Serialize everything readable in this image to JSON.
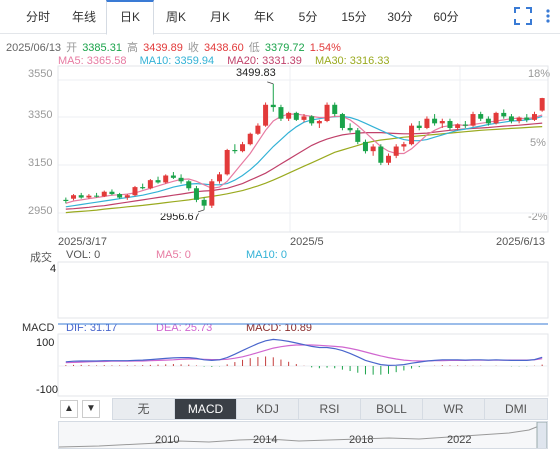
{
  "tabs": [
    {
      "label": "分时"
    },
    {
      "label": "年线"
    },
    {
      "label": "日K"
    },
    {
      "label": "周K"
    },
    {
      "label": "月K"
    },
    {
      "label": "年K"
    },
    {
      "label": "5分"
    },
    {
      "label": "15分"
    },
    {
      "label": "30分"
    },
    {
      "label": "60分"
    }
  ],
  "quote": {
    "date": "2025/06/13",
    "open_label": "开",
    "open": "3385.31",
    "high_label": "高",
    "high": "3439.89",
    "close_label": "收",
    "close": "3438.60",
    "low_label": "低",
    "low": "3379.72",
    "change_pct": "1.54%"
  },
  "ma": {
    "ma5": "MA5: 3365.58",
    "ma10": "MA10: 3359.94",
    "ma20": "MA20: 3331.39",
    "ma30": "MA30: 3316.33"
  },
  "price_axis": [
    "3550",
    "3350",
    "3150",
    "2950"
  ],
  "pct_axis": [
    "18%",
    "5%",
    "-2%"
  ],
  "date_axis": [
    "2025/3/17",
    "2025/5",
    "2025/6/13"
  ],
  "annotations": {
    "max": "3499.83",
    "min": "2956.67"
  },
  "volume": {
    "title": "成交",
    "vol": "VOL: 0",
    "ma5": "MA5: 0",
    "ma10": "MA10: 0",
    "axis_top": "4"
  },
  "macd": {
    "title": "MACD",
    "dif": "DIF: 31.17",
    "dea": "DEA: 25.73",
    "macd": "MACD: 10.89",
    "axis_top": "100",
    "axis_bottom": "-100"
  },
  "indicators": [
    "无",
    "MACD",
    "KDJ",
    "RSI",
    "BOLL",
    "WR",
    "DMI"
  ],
  "active_indicator": "MACD",
  "nav_years": [
    "2010",
    "2014",
    "2018",
    "2022"
  ],
  "colors": {
    "up": "#e23a3a",
    "down": "#1aa34a",
    "ma5": "#e77ba2",
    "ma10": "#33b2d6",
    "ma20": "#c0416a",
    "ma30": "#9aaa1f",
    "dif": "#4a66cc",
    "dea": "#d066d0",
    "macd_text": "#8b2e2e"
  },
  "chart_data": {
    "type": "candlestick",
    "ylim": [
      2870,
      3560
    ],
    "candles_ohlc": [
      [
        3000,
        3010,
        2985,
        2995
      ],
      [
        3005,
        3025,
        2998,
        3020
      ],
      [
        3020,
        3030,
        3005,
        3010
      ],
      [
        3010,
        3025,
        3005,
        3018
      ],
      [
        3018,
        3030,
        3010,
        3015
      ],
      [
        3015,
        3040,
        3012,
        3035
      ],
      [
        3035,
        3045,
        3020,
        3025
      ],
      [
        3025,
        3030,
        3005,
        3010
      ],
      [
        3010,
        3025,
        3000,
        3020
      ],
      [
        3020,
        3060,
        3015,
        3055
      ],
      [
        3055,
        3070,
        3045,
        3050
      ],
      [
        3050,
        3090,
        3045,
        3085
      ],
      [
        3085,
        3100,
        3070,
        3075
      ],
      [
        3075,
        3110,
        3070,
        3105
      ],
      [
        3105,
        3120,
        3090,
        3095
      ],
      [
        3095,
        3110,
        3070,
        3080
      ],
      [
        3080,
        3085,
        3040,
        3050
      ],
      [
        3050,
        3060,
        2990,
        3000
      ],
      [
        3000,
        3010,
        2957,
        2975
      ],
      [
        2975,
        3090,
        2965,
        3080
      ],
      [
        3080,
        3120,
        3070,
        3110
      ],
      [
        3110,
        3220,
        3105,
        3215
      ],
      [
        3215,
        3240,
        3200,
        3210
      ],
      [
        3210,
        3250,
        3205,
        3240
      ],
      [
        3240,
        3290,
        3235,
        3285
      ],
      [
        3285,
        3330,
        3280,
        3320
      ],
      [
        3320,
        3420,
        3315,
        3410
      ],
      [
        3410,
        3500,
        3380,
        3400
      ],
      [
        3400,
        3410,
        3340,
        3350
      ],
      [
        3350,
        3380,
        3340,
        3375
      ],
      [
        3375,
        3380,
        3340,
        3345
      ],
      [
        3345,
        3370,
        3335,
        3360
      ],
      [
        3360,
        3365,
        3320,
        3330
      ],
      [
        3330,
        3345,
        3310,
        3340
      ],
      [
        3340,
        3420,
        3335,
        3410
      ],
      [
        3410,
        3420,
        3360,
        3370
      ],
      [
        3370,
        3375,
        3300,
        3310
      ],
      [
        3310,
        3330,
        3290,
        3300
      ],
      [
        3300,
        3310,
        3240,
        3250
      ],
      [
        3250,
        3260,
        3200,
        3210
      ],
      [
        3210,
        3240,
        3190,
        3230
      ],
      [
        3230,
        3240,
        3150,
        3160
      ],
      [
        3160,
        3200,
        3150,
        3190
      ],
      [
        3190,
        3240,
        3180,
        3230
      ],
      [
        3230,
        3250,
        3210,
        3240
      ],
      [
        3240,
        3330,
        3235,
        3320
      ],
      [
        3320,
        3340,
        3300,
        3310
      ],
      [
        3310,
        3360,
        3305,
        3350
      ],
      [
        3350,
        3370,
        3320,
        3330
      ],
      [
        3330,
        3350,
        3310,
        3340
      ],
      [
        3340,
        3350,
        3300,
        3310
      ],
      [
        3310,
        3330,
        3300,
        3325
      ],
      [
        3325,
        3340,
        3310,
        3320
      ],
      [
        3320,
        3380,
        3315,
        3370
      ],
      [
        3370,
        3380,
        3340,
        3350
      ],
      [
        3350,
        3360,
        3320,
        3330
      ],
      [
        3330,
        3380,
        3325,
        3375
      ],
      [
        3375,
        3390,
        3350,
        3360
      ],
      [
        3360,
        3370,
        3330,
        3340
      ],
      [
        3340,
        3360,
        3330,
        3355
      ],
      [
        3355,
        3370,
        3335,
        3345
      ],
      [
        3345,
        3380,
        3340,
        3370
      ],
      [
        3385,
        3440,
        3380,
        3439
      ]
    ],
    "ma5": [
      2985,
      2995,
      3000,
      3005,
      3010,
      3015,
      3020,
      3022,
      3025,
      3030,
      3040,
      3050,
      3060,
      3070,
      3080,
      3088,
      3090,
      3080,
      3065,
      3050,
      3055,
      3080,
      3120,
      3160,
      3200,
      3250,
      3300,
      3340,
      3360,
      3370,
      3370,
      3365,
      3360,
      3355,
      3355,
      3360,
      3360,
      3345,
      3320,
      3290,
      3260,
      3230,
      3210,
      3200,
      3200,
      3220,
      3250,
      3280,
      3300,
      3315,
      3320,
      3325,
      3320,
      3325,
      3330,
      3335,
      3340,
      3345,
      3350,
      3352,
      3350,
      3355,
      3366
    ],
    "ma10": [
      2970,
      2975,
      2980,
      2985,
      2990,
      2995,
      3000,
      3005,
      3010,
      3015,
      3020,
      3028,
      3035,
      3045,
      3055,
      3062,
      3068,
      3070,
      3068,
      3065,
      3065,
      3070,
      3085,
      3105,
      3130,
      3160,
      3195,
      3230,
      3260,
      3290,
      3315,
      3335,
      3345,
      3350,
      3355,
      3358,
      3360,
      3355,
      3345,
      3330,
      3315,
      3300,
      3285,
      3270,
      3260,
      3255,
      3255,
      3260,
      3270,
      3280,
      3290,
      3300,
      3305,
      3312,
      3318,
      3325,
      3330,
      3335,
      3340,
      3342,
      3345,
      3350,
      3360
    ],
    "ma20": [
      2960,
      2962,
      2965,
      2968,
      2972,
      2975,
      2980,
      2985,
      2990,
      2995,
      3000,
      3005,
      3010,
      3015,
      3020,
      3025,
      3030,
      3035,
      3038,
      3040,
      3045,
      3050,
      3060,
      3070,
      3085,
      3100,
      3115,
      3135,
      3155,
      3175,
      3195,
      3215,
      3235,
      3250,
      3262,
      3272,
      3280,
      3285,
      3288,
      3290,
      3290,
      3290,
      3288,
      3286,
      3285,
      3285,
      3286,
      3288,
      3292,
      3296,
      3300,
      3303,
      3306,
      3308,
      3310,
      3312,
      3315,
      3318,
      3320,
      3322,
      3325,
      3328,
      3331
    ],
    "ma30": [
      2945,
      2948,
      2950,
      2953,
      2956,
      2960,
      2963,
      2966,
      2970,
      2973,
      2976,
      2980,
      2984,
      2988,
      2992,
      2996,
      3000,
      3005,
      3010,
      3015,
      3020,
      3026,
      3033,
      3040,
      3050,
      3060,
      3072,
      3085,
      3100,
      3115,
      3130,
      3145,
      3160,
      3175,
      3190,
      3205,
      3215,
      3225,
      3235,
      3245,
      3252,
      3258,
      3262,
      3266,
      3270,
      3273,
      3276,
      3279,
      3282,
      3285,
      3288,
      3291,
      3294,
      3297,
      3300,
      3302,
      3304,
      3306,
      3308,
      3310,
      3312,
      3314,
      3316
    ],
    "macd_dif": [
      15,
      17,
      18,
      18,
      18,
      19,
      19,
      19,
      19,
      20,
      21,
      23,
      25,
      27,
      29,
      30,
      30,
      27,
      22,
      20,
      22,
      30,
      42,
      55,
      68,
      80,
      90,
      95,
      92,
      88,
      82,
      76,
      70,
      66,
      66,
      62,
      55,
      45,
      33,
      20,
      12,
      5,
      2,
      3,
      5,
      10,
      14,
      18,
      20,
      22,
      22,
      22,
      21,
      22,
      22,
      21,
      22,
      21,
      20,
      20,
      20,
      23,
      31
    ],
    "macd_dea": [
      12,
      13,
      14,
      15,
      16,
      16,
      17,
      17,
      17,
      18,
      18,
      19,
      20,
      21,
      22,
      24,
      25,
      25,
      24,
      23,
      23,
      24,
      28,
      33,
      40,
      48,
      56,
      64,
      69,
      73,
      75,
      75,
      75,
      74,
      72,
      70,
      68,
      63,
      57,
      50,
      43,
      36,
      30,
      25,
      21,
      19,
      18,
      18,
      19,
      19,
      20,
      20,
      20,
      21,
      21,
      21,
      21,
      21,
      21,
      21,
      21,
      22,
      26
    ],
    "macd_hist": [
      6,
      8,
      8,
      6,
      4,
      6,
      4,
      4,
      4,
      4,
      6,
      8,
      10,
      12,
      14,
      12,
      10,
      4,
      -4,
      -6,
      -2,
      12,
      28,
      44,
      56,
      64,
      68,
      62,
      46,
      30,
      14,
      2,
      -10,
      -16,
      -12,
      -16,
      -26,
      -36,
      -48,
      -60,
      -62,
      -62,
      -56,
      -44,
      -32,
      -18,
      -8,
      0,
      2,
      6,
      4,
      4,
      2,
      2,
      2,
      0,
      2,
      0,
      -2,
      -2,
      -2,
      2,
      10
    ]
  }
}
